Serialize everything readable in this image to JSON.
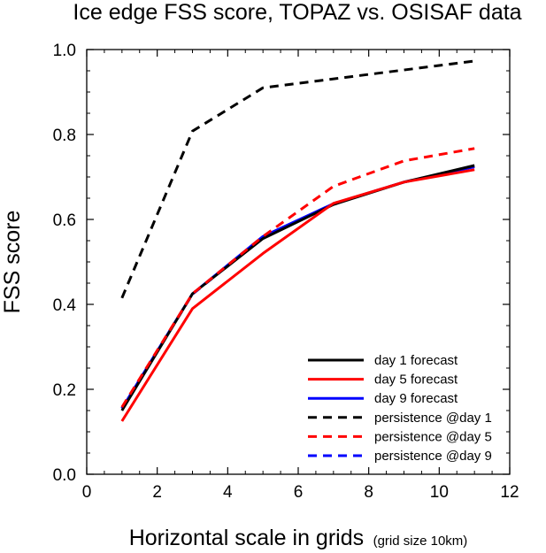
{
  "chart_data": {
    "type": "line",
    "title": "Ice edge FSS score, TOPAZ vs. OSISAF data",
    "xlabel": "Horizontal scale in grids",
    "xlabel_note": "(grid size 10km)",
    "ylabel": "FSS score",
    "xlim": [
      0,
      12
    ],
    "ylim": [
      0,
      1
    ],
    "x_ticks": [
      0,
      2,
      4,
      6,
      8,
      10,
      12
    ],
    "x_tick_labels": [
      "0",
      "2",
      "4",
      "6",
      "8",
      "10",
      "12"
    ],
    "y_ticks": [
      0,
      0.2,
      0.4,
      0.6,
      0.8,
      1.0
    ],
    "y_tick_labels": [
      "0.0",
      "0.2",
      "0.4",
      "0.6",
      "0.8",
      "1.0"
    ],
    "grid": false,
    "legend_position": "bottom-right",
    "x": [
      1,
      3,
      5,
      7,
      9,
      11
    ],
    "series": [
      {
        "name": "day 1 forecast",
        "color": "#000000",
        "dash": "solid",
        "values": [
          0.15,
          0.425,
          0.555,
          0.635,
          0.688,
          0.727
        ]
      },
      {
        "name": "day 5 forecast",
        "color": "#ff0000",
        "dash": "solid",
        "values": [
          0.125,
          0.39,
          0.52,
          0.638,
          0.688,
          0.717
        ]
      },
      {
        "name": "day 9 forecast",
        "color": "#0000ff",
        "dash": "solid",
        "values": [
          0.155,
          0.425,
          0.56,
          0.637,
          0.688,
          0.724
        ]
      },
      {
        "name": "persistence @day 1",
        "color": "#000000",
        "dash": "dashed",
        "values": [
          0.415,
          0.808,
          0.91,
          null,
          null,
          0.973
        ]
      },
      {
        "name": "persistence @day 5",
        "color": "#ff0000",
        "dash": "dashed",
        "values": [
          0.158,
          0.425,
          0.56,
          0.678,
          0.738,
          0.767
        ]
      },
      {
        "name": "persistence @day 9",
        "color": "#0000ff",
        "dash": "dashed",
        "values": [
          0.155,
          0.424,
          0.558,
          0.637,
          0.688,
          0.725
        ]
      }
    ]
  }
}
